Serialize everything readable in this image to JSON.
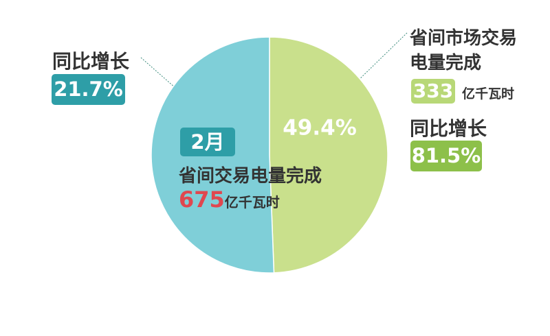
{
  "chart_data": {
    "type": "pie",
    "values": [
      50.6,
      49.4
    ],
    "value_labels": [
      null,
      "49.4%"
    ],
    "colors": [
      "#7fcfd8",
      "#c9e08c"
    ],
    "center": {
      "month": "2月",
      "label": "省间交易电量完成",
      "value": 675,
      "unit": "亿千瓦时"
    },
    "left_annotation": {
      "label": "同比增长",
      "value": "21.7%"
    },
    "right_annotation": {
      "label": "省间市场交易电量完成",
      "value": 333,
      "unit": "亿千瓦时",
      "growth_label": "同比增长",
      "growth": "81.5%"
    }
  }
}
